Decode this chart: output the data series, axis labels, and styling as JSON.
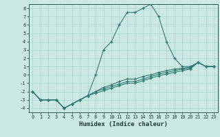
{
  "title": "",
  "xlabel": "Humidex (Indice chaleur)",
  "ylabel": "",
  "bg_color": "#cce8e4",
  "line_color": "#2e7b6e",
  "grid_color": "#aad4ce",
  "xlim": [
    -0.5,
    23.5
  ],
  "ylim": [
    -4.5,
    8.5
  ],
  "xticks": [
    0,
    1,
    2,
    3,
    4,
    5,
    6,
    7,
    8,
    9,
    10,
    11,
    12,
    13,
    14,
    15,
    16,
    17,
    18,
    19,
    20,
    21,
    22,
    23
  ],
  "yticks": [
    -4,
    -3,
    -2,
    -1,
    0,
    1,
    2,
    3,
    4,
    5,
    6,
    7,
    8
  ],
  "series": [
    {
      "x": [
        0,
        1,
        2,
        3,
        4,
        5,
        6,
        7,
        8,
        9,
        10,
        11,
        12,
        13,
        14,
        15,
        16,
        17,
        18,
        19,
        20,
        21,
        22,
        23
      ],
      "y": [
        -2,
        -3,
        -3,
        -3,
        -4,
        -3.5,
        -3,
        -2.5,
        0,
        3,
        4,
        6,
        7.5,
        7.5,
        8,
        8.5,
        7,
        4,
        2,
        1,
        1,
        1.5,
        1,
        1
      ]
    },
    {
      "x": [
        0,
        1,
        2,
        3,
        4,
        5,
        6,
        7,
        8,
        9,
        10,
        11,
        12,
        13,
        14,
        15,
        16,
        17,
        18,
        19,
        20,
        21,
        22,
        23
      ],
      "y": [
        -2,
        -3,
        -3,
        -3,
        -4,
        -3.5,
        -3,
        -2.5,
        -2,
        -1.5,
        -1.2,
        -0.8,
        -0.5,
        -0.5,
        -0.2,
        0,
        0.3,
        0.5,
        0.7,
        0.8,
        0.9,
        1.5,
        1,
        1
      ]
    },
    {
      "x": [
        0,
        1,
        2,
        3,
        4,
        5,
        6,
        7,
        8,
        9,
        10,
        11,
        12,
        13,
        14,
        15,
        16,
        17,
        18,
        19,
        20,
        21,
        22,
        23
      ],
      "y": [
        -2,
        -3,
        -3,
        -3,
        -4,
        -3.5,
        -3,
        -2.5,
        -2,
        -1.7,
        -1.4,
        -1.1,
        -0.8,
        -0.8,
        -0.5,
        -0.2,
        0.1,
        0.3,
        0.5,
        0.7,
        0.8,
        1.5,
        1,
        1
      ]
    },
    {
      "x": [
        0,
        1,
        2,
        3,
        4,
        5,
        6,
        7,
        8,
        9,
        10,
        11,
        12,
        13,
        14,
        15,
        16,
        17,
        18,
        19,
        20,
        21,
        22,
        23
      ],
      "y": [
        -2,
        -3,
        -3,
        -3,
        -4,
        -3.5,
        -3,
        -2.5,
        -2.2,
        -1.9,
        -1.6,
        -1.3,
        -1.0,
        -1.0,
        -0.7,
        -0.4,
        -0.1,
        0.1,
        0.3,
        0.5,
        0.7,
        1.5,
        1,
        1
      ]
    }
  ]
}
